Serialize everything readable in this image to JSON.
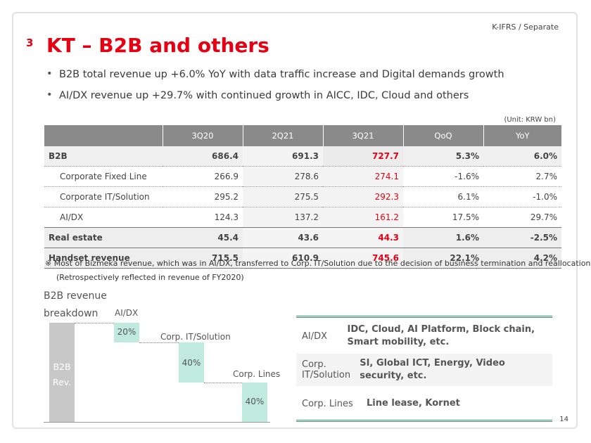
{
  "header": {
    "badge": "K-IFRS / Separate",
    "section_number": "3",
    "title": "KT – B2B and others"
  },
  "bullets": [
    "B2B total revenue up +6.0% YoY with data traffic increase and Digital demands growth",
    "AI/DX revenue up +29.7% with continued growth in AICC, IDC, Cloud and others"
  ],
  "table": {
    "unit": "(Unit: KRW bn)",
    "columns": [
      "",
      "3Q20",
      "2Q21",
      "3Q21",
      "QoQ",
      "YoY"
    ],
    "rows": [
      {
        "label": "B2B",
        "values": [
          "686.4",
          "691.3",
          "727.7",
          "5.3%",
          "6.0%"
        ]
      },
      {
        "label": "Corporate Fixed Line",
        "values": [
          "266.9",
          "278.6",
          "274.1",
          "-1.6%",
          "2.7%"
        ]
      },
      {
        "label": "Corporate IT/Solution",
        "values": [
          "295.2",
          "275.5",
          "292.3",
          "6.1%",
          "-1.0%"
        ]
      },
      {
        "label": "AI/DX",
        "values": [
          "124.3",
          "137.2",
          "161.2",
          "17.5%",
          "29.7%"
        ]
      },
      {
        "label": "Real estate",
        "values": [
          "45.4",
          "43.6",
          "44.3",
          "1.6%",
          "-2.5%"
        ]
      },
      {
        "label": "Handset revenue",
        "values": [
          "715.5",
          "610.9",
          "745.6",
          "22.1%",
          "4.2%"
        ]
      }
    ]
  },
  "note": {
    "line1": "※ Most of Bizmeka revenue, which was in AI/DX, transferred to Corp. IT/Solution due to the decision of business termination and reallocation",
    "line2": "(Retrospectively reflected in revenue of FY2020)"
  },
  "breakdown": {
    "title_line1": "B2B revenue",
    "title_line2": "breakdown",
    "b2b_label_1": "B2B",
    "b2b_label_2": "Rev.",
    "aidx_label": "AI/DX",
    "aidx_value": "20%",
    "aidx_share": 0.2,
    "corp_it_label": "Corp. IT/Solution",
    "corp_it_value": "40%",
    "corp_it_share": 0.4,
    "corp_lines_label": "Corp. Lines",
    "corp_lines_value": "40%",
    "corp_lines_share": 0.4,
    "colors": {
      "total": "#c8c8c8",
      "segment": "#bfeadd"
    }
  },
  "descriptions": [
    {
      "key": "AI/DX",
      "value": "IDC, Cloud, AI Platform, Block chain, Smart mobility, etc."
    },
    {
      "key": "Corp. IT/Solution",
      "value": "SI, Global ICT, Energy, Video security, etc."
    },
    {
      "key": "Corp. Lines",
      "value": "Line lease, Kornet"
    }
  ],
  "page_number": "14",
  "colors": {
    "accent": "#e60012",
    "header_bg": "#8a8a8a",
    "green_rule": "#3a9b6c"
  }
}
